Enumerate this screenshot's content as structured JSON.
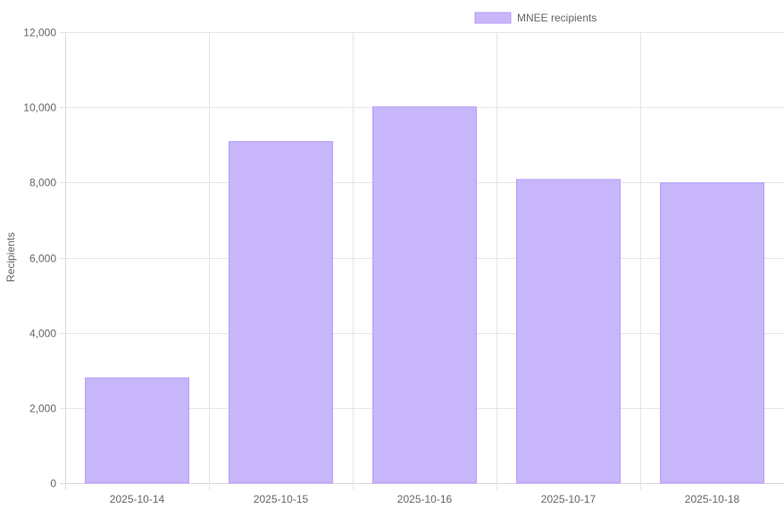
{
  "chart_data": {
    "type": "bar",
    "categories": [
      "2025-10-14",
      "2025-10-15",
      "2025-10-16",
      "2025-10-17",
      "2025-10-18"
    ],
    "series": [
      {
        "name": "MNEE recipients",
        "values": [
          2800,
          9090,
          10010,
          8080,
          7990
        ]
      }
    ],
    "ylabel": "Recipients",
    "ylim": [
      0,
      12000
    ],
    "yticks": [
      0,
      2000,
      4000,
      6000,
      8000,
      10000,
      12000
    ],
    "ytick_labels": [
      "0",
      "2,000",
      "4,000",
      "6,000",
      "8,000",
      "10,000",
      "12,000"
    ],
    "grid": true,
    "legend_position": "top",
    "colors": {
      "bar_fill": "#c8b6fa",
      "bar_border": "#b39ef5"
    }
  }
}
